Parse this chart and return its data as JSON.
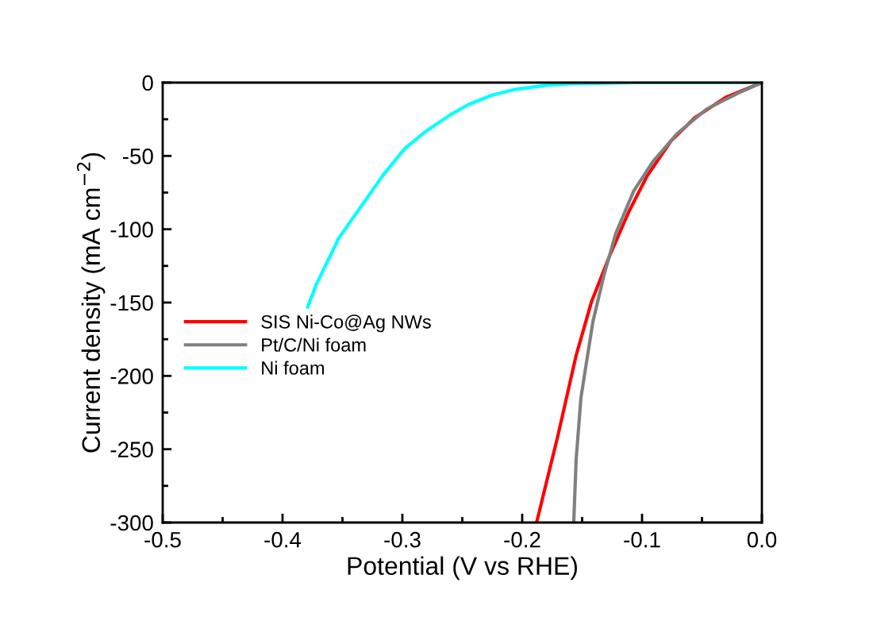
{
  "chart_data": {
    "type": "line",
    "xlabel": "Potential (V vs RHE)",
    "ylabel": "Current density (mA cm$^{−2}$)",
    "xlim": [
      -0.5,
      0.0
    ],
    "ylim": [
      -300,
      0
    ],
    "xticks": [
      -0.5,
      {
        "value": -0.45,
        "label": null
      },
      -0.4,
      {
        "value": -0.35,
        "label": null
      },
      -0.3,
      {
        "value": -0.25,
        "label": null
      },
      -0.2,
      {
        "value": -0.15,
        "label": null
      },
      -0.1,
      {
        "value": -0.05,
        "label": null
      },
      {
        "value": 0.0,
        "label": "0.0"
      }
    ],
    "yticks": [
      -300,
      {
        "value": -275,
        "label": null
      },
      -250,
      {
        "value": -225,
        "label": null
      },
      -200,
      {
        "value": -175,
        "label": null
      },
      -150,
      {
        "value": -125,
        "label": null
      },
      -100,
      {
        "value": -75,
        "label": null
      },
      -50,
      {
        "value": -25,
        "label": null
      },
      0
    ],
    "grid": false,
    "legend": "center left",
    "line_style": "solid",
    "marker": "none",
    "series": [
      {
        "name": "SIS Ni-Co@Ag NWs",
        "color": "#ff0000",
        "x": [
          -0.188,
          -0.17,
          -0.155,
          -0.142,
          -0.127,
          -0.111,
          -0.096,
          -0.076,
          -0.056,
          -0.03,
          0.0
        ],
        "values": [
          -300,
          -240,
          -186,
          -149,
          -118,
          -88,
          -64,
          -40,
          -24,
          -10,
          0
        ]
      },
      {
        "name": "Pt/C/Ni foam",
        "color": "#808080",
        "x": [
          -0.157,
          -0.155,
          -0.151,
          -0.147,
          -0.141,
          -0.132,
          -0.122,
          -0.107,
          -0.091,
          -0.071,
          -0.046,
          -0.021,
          0.0
        ],
        "values": [
          -300,
          -257,
          -215,
          -194,
          -163,
          -132,
          -103,
          -74,
          -54,
          -35,
          -18,
          -7.6,
          0
        ]
      },
      {
        "name": "Ni foam",
        "color": "#00ffff",
        "x": [
          -0.379,
          -0.372,
          -0.353,
          -0.316,
          -0.298,
          -0.28,
          -0.26,
          -0.245,
          -0.225,
          -0.205,
          -0.18,
          -0.159,
          -0.106,
          0.0
        ],
        "values": [
          -153,
          -138,
          -106,
          -63,
          -45,
          -33,
          -22,
          -15,
          -8.5,
          -4.5,
          -1.8,
          -0.8,
          0,
          0
        ]
      }
    ]
  }
}
